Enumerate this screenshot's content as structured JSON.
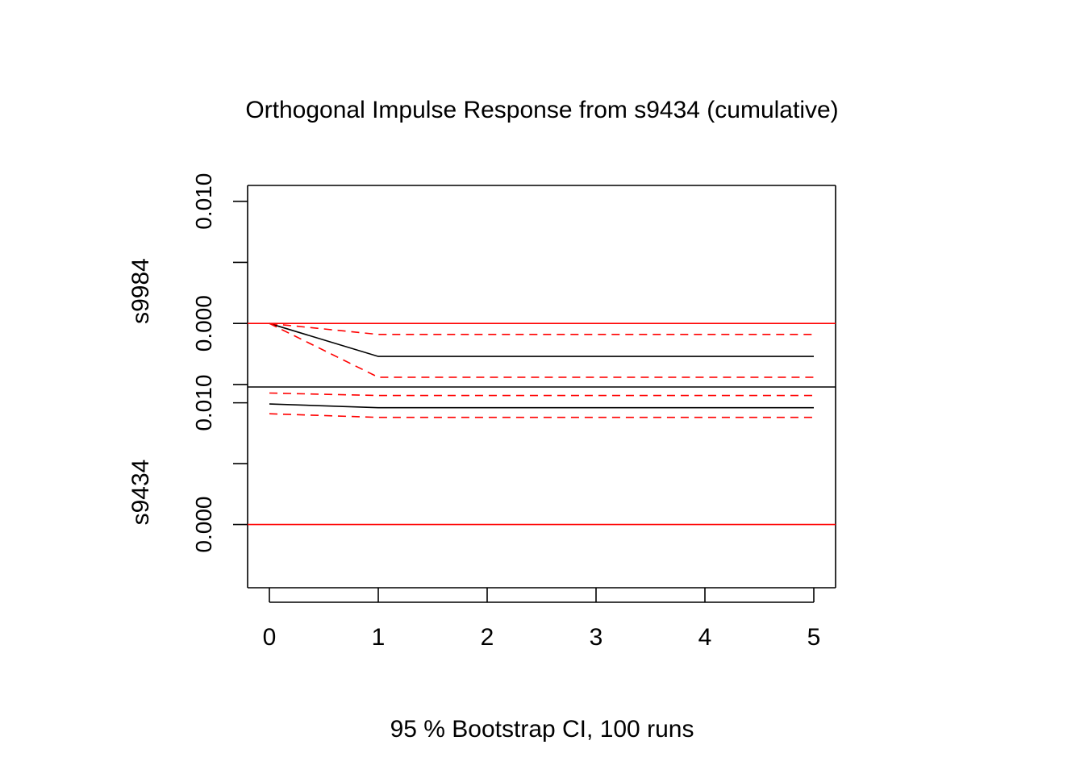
{
  "chart_data": {
    "type": "line",
    "title": "Orthogonal Impulse Response from s9434 (cumulative)",
    "xlabel": "95 % Bootstrap CI,  100 runs",
    "x": [
      0,
      1,
      2,
      3,
      4,
      5
    ],
    "x_ticks": [
      "0",
      "1",
      "2",
      "3",
      "4",
      "5"
    ],
    "colors": {
      "response": "#000000",
      "ci": "#ff0000",
      "zero_line": "#ff0000"
    },
    "panels": [
      {
        "ylabel": "s9984",
        "ylim": [
          -0.0052,
          0.0113
        ],
        "y_ticks": [
          -0.01,
          -0.005,
          0.0,
          0.005,
          0.01
        ],
        "y_tick_labels": [
          "",
          "",
          "0.000",
          "",
          "0.010"
        ],
        "series": [
          {
            "role": "response",
            "style": "solid",
            "values": [
              0.0,
              -0.0027,
              -0.0027,
              -0.0027,
              -0.0027,
              -0.0027
            ]
          },
          {
            "role": "upper_ci",
            "style": "dashed",
            "values": [
              0.0,
              -0.0009,
              -0.0009,
              -0.0009,
              -0.0009,
              -0.0009
            ]
          },
          {
            "role": "lower_ci",
            "style": "dashed",
            "values": [
              0.0,
              -0.0044,
              -0.0044,
              -0.0044,
              -0.0044,
              -0.0044
            ]
          }
        ],
        "hline": 0.0
      },
      {
        "ylabel": "s9434",
        "ylim": [
          -0.0052,
          0.0113
        ],
        "y_ticks": [
          0.0,
          0.005,
          0.01
        ],
        "y_tick_labels": [
          "0.000",
          "",
          "0.010"
        ],
        "series": [
          {
            "role": "response",
            "style": "solid",
            "values": [
              0.0099,
              0.0096,
              0.0096,
              0.0096,
              0.0096,
              0.0096
            ]
          },
          {
            "role": "upper_ci",
            "style": "dashed",
            "values": [
              0.0108,
              0.0106,
              0.0106,
              0.0106,
              0.0106,
              0.0106
            ]
          },
          {
            "role": "lower_ci",
            "style": "dashed",
            "values": [
              0.0091,
              0.0088,
              0.0088,
              0.0088,
              0.0088,
              0.0088
            ]
          }
        ],
        "hline": 0.0
      }
    ]
  }
}
